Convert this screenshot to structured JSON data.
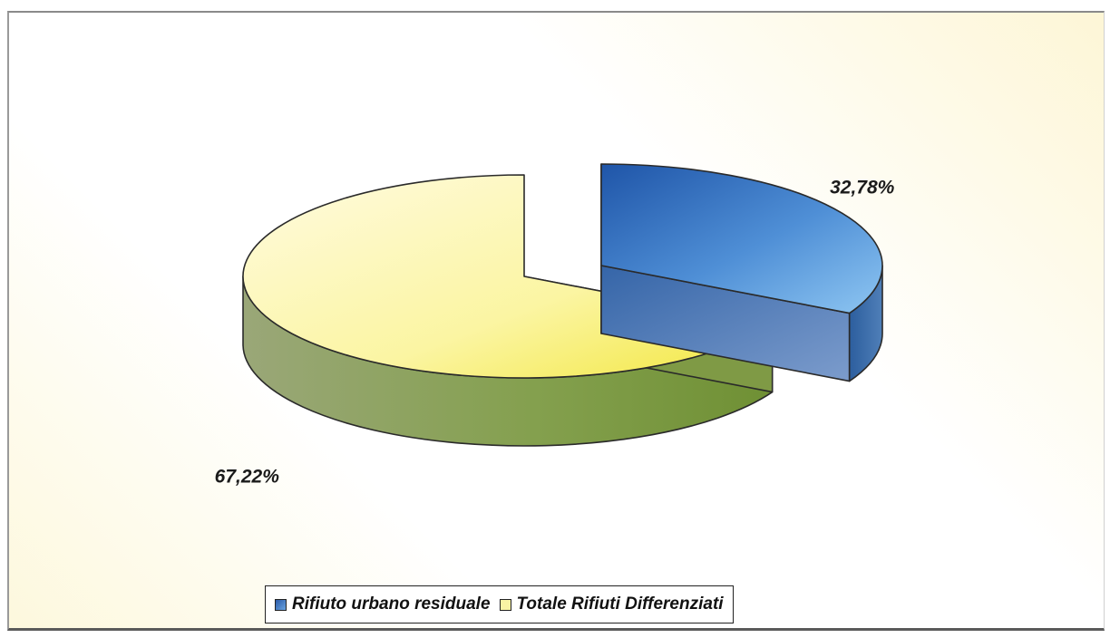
{
  "chart_data": {
    "type": "pie",
    "pie_style": "3d-exploded",
    "categories": [
      "Rifiuto urbano residuale",
      "Totale Rifiuti Differenziati"
    ],
    "values": [
      32.78,
      67.22
    ],
    "data_labels": [
      "32,78%",
      "67,22%"
    ],
    "title": "",
    "legend_position": "bottom",
    "colors": {
      "Rifiuto urbano residuale": "#3f78c4",
      "Totale Rifiuti Differenziati": "#f7f07a"
    }
  },
  "legend": {
    "items": [
      {
        "label": "Rifiuto urbano residuale",
        "color": "#3f78c4"
      },
      {
        "label": "Totale Rifiuti Differenziati",
        "color": "#f7f07a"
      }
    ]
  }
}
